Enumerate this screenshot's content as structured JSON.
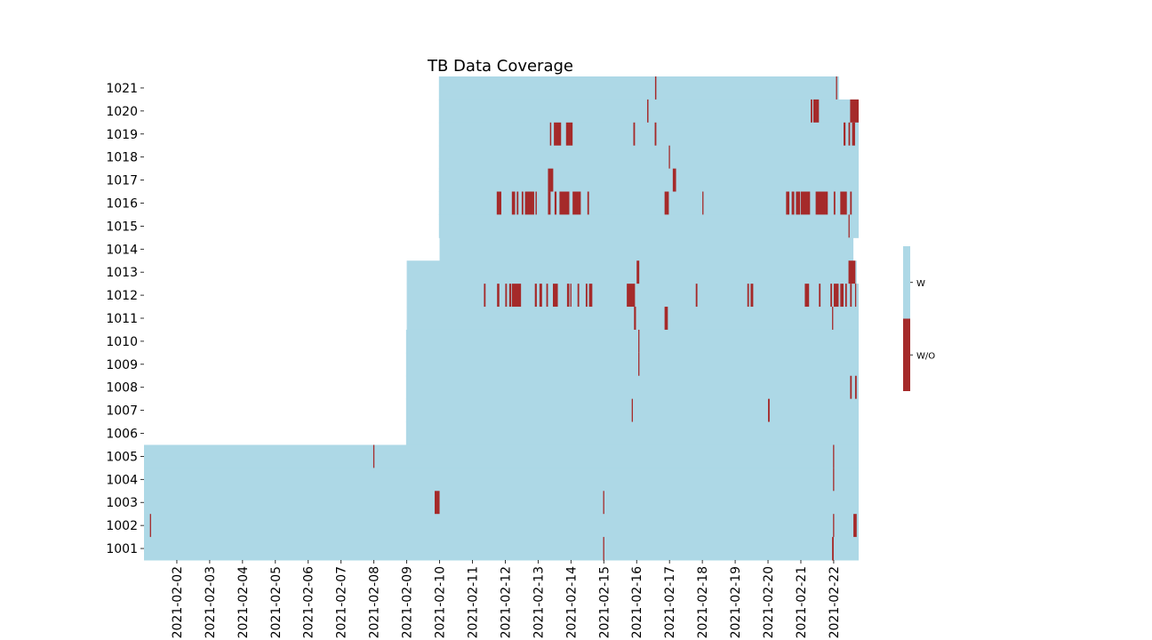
{
  "chart_data": {
    "type": "heatmap",
    "title": "TB Data Coverage",
    "xlabel": "",
    "ylabel": "",
    "x_ticks": [
      "2021-02-02",
      "2021-02-03",
      "2021-02-04",
      "2021-02-05",
      "2021-02-06",
      "2021-02-07",
      "2021-02-08",
      "2021-02-09",
      "2021-02-10",
      "2021-02-11",
      "2021-02-12",
      "2021-02-13",
      "2021-02-14",
      "2021-02-15",
      "2021-02-16",
      "2021-02-17",
      "2021-02-18",
      "2021-02-19",
      "2021-02-20",
      "2021-02-21",
      "2021-02-22"
    ],
    "xlim": [
      1.0,
      22.76
    ],
    "rows": [
      "1021",
      "1020",
      "1019",
      "1018",
      "1017",
      "1016",
      "1015",
      "1014",
      "1013",
      "1012",
      "1011",
      "1010",
      "1009",
      "1008",
      "1007",
      "1006",
      "1005",
      "1004",
      "1003",
      "1002",
      "1001"
    ],
    "legend": {
      "labels": [
        "W",
        "W/O"
      ],
      "placement": "right"
    },
    "colors": {
      "W": "#add8e6",
      "W/O": "#a52a2a"
    },
    "coverage": {
      "1021": [
        9.98,
        22.16
      ],
      "1020": [
        9.98,
        22.76
      ],
      "1019": [
        9.98,
        22.76
      ],
      "1018": [
        9.98,
        22.76
      ],
      "1017": [
        9.98,
        22.76
      ],
      "1016": [
        9.98,
        22.76
      ],
      "1015": [
        9.98,
        22.76
      ],
      "1014": [
        10.0,
        22.6
      ],
      "1013": [
        9.0,
        22.7
      ],
      "1012": [
        9.0,
        22.76
      ],
      "1011": [
        9.0,
        22.76
      ],
      "1010": [
        8.98,
        22.76
      ],
      "1009": [
        8.98,
        22.76
      ],
      "1008": [
        8.98,
        22.76
      ],
      "1007": [
        8.98,
        22.76
      ],
      "1006": [
        8.98,
        22.76
      ],
      "1005": [
        1.0,
        22.76
      ],
      "1004": [
        1.0,
        22.76
      ],
      "1003": [
        1.0,
        22.76
      ],
      "1002": [
        1.0,
        22.76
      ],
      "1001": [
        1.0,
        22.76
      ]
    },
    "gaps": {
      "1021": [
        [
          16.56,
          16.6
        ],
        [
          22.07,
          22.1
        ]
      ],
      "1020": [
        [
          16.32,
          16.36
        ],
        [
          21.3,
          21.35
        ],
        [
          21.38,
          21.55
        ],
        [
          22.5,
          22.76
        ]
      ],
      "1019": [
        [
          13.36,
          13.4
        ],
        [
          13.48,
          13.7
        ],
        [
          13.85,
          14.05
        ],
        [
          15.9,
          15.95
        ],
        [
          16.55,
          16.6
        ],
        [
          22.3,
          22.36
        ],
        [
          22.45,
          22.5
        ],
        [
          22.56,
          22.65
        ]
      ],
      "1018": [
        [
          16.98,
          17.0
        ]
      ],
      "1017": [
        [
          13.3,
          13.46
        ],
        [
          17.1,
          17.2
        ]
      ],
      "1016": [
        [
          11.74,
          11.88
        ],
        [
          12.2,
          12.3
        ],
        [
          12.35,
          12.4
        ],
        [
          12.5,
          12.55
        ],
        [
          12.6,
          12.88
        ],
        [
          12.92,
          12.96
        ],
        [
          13.3,
          13.38
        ],
        [
          13.5,
          13.56
        ],
        [
          13.65,
          13.95
        ],
        [
          14.05,
          14.3
        ],
        [
          14.5,
          14.55
        ],
        [
          16.85,
          16.98
        ],
        [
          18.0,
          18.03
        ],
        [
          20.55,
          20.65
        ],
        [
          20.72,
          20.8
        ],
        [
          20.85,
          20.98
        ],
        [
          21.0,
          21.28
        ],
        [
          21.45,
          21.82
        ],
        [
          22.0,
          22.05
        ],
        [
          22.2,
          22.4
        ],
        [
          22.5,
          22.55
        ]
      ],
      "1015": [
        [
          22.45,
          22.48
        ]
      ],
      "1014": [],
      "1013": [
        [
          16.0,
          16.08
        ],
        [
          22.45,
          22.66
        ]
      ],
      "1012": [
        [
          11.35,
          11.4
        ],
        [
          11.75,
          11.82
        ],
        [
          12.0,
          12.05
        ],
        [
          12.12,
          12.18
        ],
        [
          12.2,
          12.48
        ],
        [
          12.9,
          12.96
        ],
        [
          13.04,
          13.12
        ],
        [
          13.25,
          13.3
        ],
        [
          13.45,
          13.6
        ],
        [
          13.88,
          13.95
        ],
        [
          13.98,
          14.0
        ],
        [
          14.2,
          14.25
        ],
        [
          14.45,
          14.5
        ],
        [
          14.55,
          14.65
        ],
        [
          15.7,
          15.95
        ],
        [
          17.8,
          17.85
        ],
        [
          19.37,
          19.42
        ],
        [
          19.47,
          19.55
        ],
        [
          21.12,
          21.25
        ],
        [
          21.55,
          21.6
        ],
        [
          21.9,
          21.95
        ],
        [
          22.0,
          22.15
        ],
        [
          22.2,
          22.3
        ],
        [
          22.35,
          22.4
        ],
        [
          22.5,
          22.55
        ],
        [
          22.65,
          22.68
        ]
      ],
      "1011": [
        [
          15.92,
          15.98
        ],
        [
          16.85,
          16.95
        ],
        [
          21.95,
          21.98
        ]
      ],
      "1010": [
        [
          16.05,
          16.08
        ]
      ],
      "1009": [
        [
          16.05,
          16.08
        ]
      ],
      "1008": [
        [
          22.5,
          22.55
        ],
        [
          22.65,
          22.7
        ]
      ],
      "1007": [
        [
          15.85,
          15.88
        ],
        [
          20.0,
          20.05
        ]
      ],
      "1006": [],
      "1005": [
        [
          7.98,
          8.01
        ],
        [
          21.98,
          22.01
        ]
      ],
      "1004": [
        [
          21.98,
          22.01
        ]
      ],
      "1003": [
        [
          9.85,
          10.0
        ],
        [
          14.98,
          15.01
        ]
      ],
      "1002": [
        [
          1.18,
          1.21
        ],
        [
          21.98,
          22.01
        ],
        [
          22.6,
          22.7
        ]
      ],
      "1001": [
        [
          14.98,
          15.01
        ],
        [
          21.95,
          22.0
        ]
      ]
    }
  }
}
